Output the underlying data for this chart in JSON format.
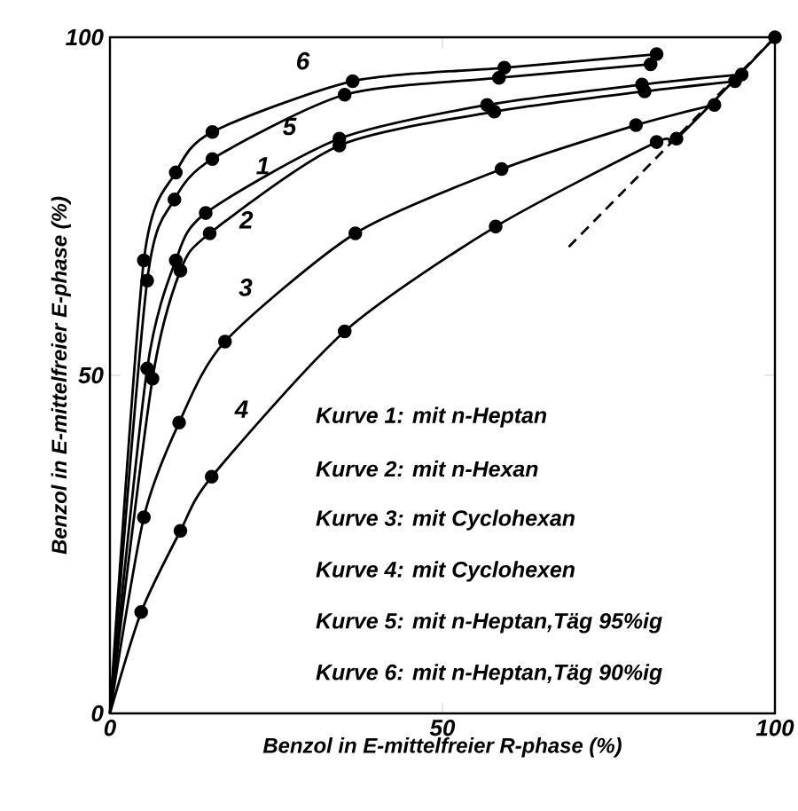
{
  "chart_data": {
    "type": "line",
    "xlabel": "Benzol in E-mittelfreier R-phase (%)",
    "ylabel": "Benzol in E-mittelfreier E-phase (%)",
    "xlim": [
      0,
      100
    ],
    "ylim": [
      0,
      100
    ],
    "xticks": [
      0,
      50,
      100
    ],
    "yticks": [
      0,
      50,
      100
    ],
    "grid": false,
    "legend": false,
    "marker": "circle",
    "line_style": "solid",
    "series": [
      {
        "name": "1",
        "color": "#000000",
        "x": [
          0,
          5.6,
          9.9,
          14.4,
          34.5,
          56.7,
          80,
          95
        ],
        "values": [
          0,
          51,
          67,
          74,
          85,
          90,
          93,
          94.5
        ]
      },
      {
        "name": "2",
        "color": "#000000",
        "x": [
          0,
          6.4,
          10.6,
          15,
          34.5,
          57.8,
          80.4,
          94
        ],
        "values": [
          0,
          49.5,
          65.5,
          71,
          84,
          89,
          92,
          93.5
        ]
      },
      {
        "name": "3",
        "color": "#000000",
        "x": [
          0,
          5.1,
          10.4,
          17.3,
          36.9,
          58.9,
          79.1,
          90.9
        ],
        "values": [
          0,
          29,
          43,
          55,
          71,
          80.5,
          87,
          90
        ]
      },
      {
        "name": "4",
        "color": "#000000",
        "x": [
          0,
          4.7,
          10.6,
          15.3,
          35.3,
          58,
          82.2,
          85.2,
          100
        ],
        "values": [
          0,
          15,
          27,
          35,
          56.5,
          72,
          84.5,
          85,
          100
        ]
      },
      {
        "name": "5",
        "color": "#000000",
        "x": [
          0,
          5.6,
          9.7,
          15.4,
          35.3,
          58.5,
          81.3
        ],
        "values": [
          0,
          64,
          76,
          82,
          91.5,
          94,
          96
        ]
      },
      {
        "name": "6",
        "color": "#000000",
        "x": [
          0,
          5.1,
          9.9,
          15.4,
          36.5,
          59.3,
          82.2
        ],
        "values": [
          0,
          67,
          80,
          86,
          93.5,
          95.5,
          97.5
        ]
      },
      {
        "color": "#000000",
        "marker": "none",
        "line_style": "dashed",
        "x": [
          69,
          100
        ],
        "values": [
          69,
          100
        ]
      }
    ],
    "annotations": [
      "Kurve 1: mit n-Heptan",
      "Kurve 2: mit n-Hexan",
      "Kurve 3: mit Cyclohexan",
      "Kurve 4: mit Cyclohexen",
      "Kurve 5: mit n-Heptan,Täg 95%ig",
      "Kurve 6: mit n-Heptan,Täg 90%ig"
    ]
  }
}
